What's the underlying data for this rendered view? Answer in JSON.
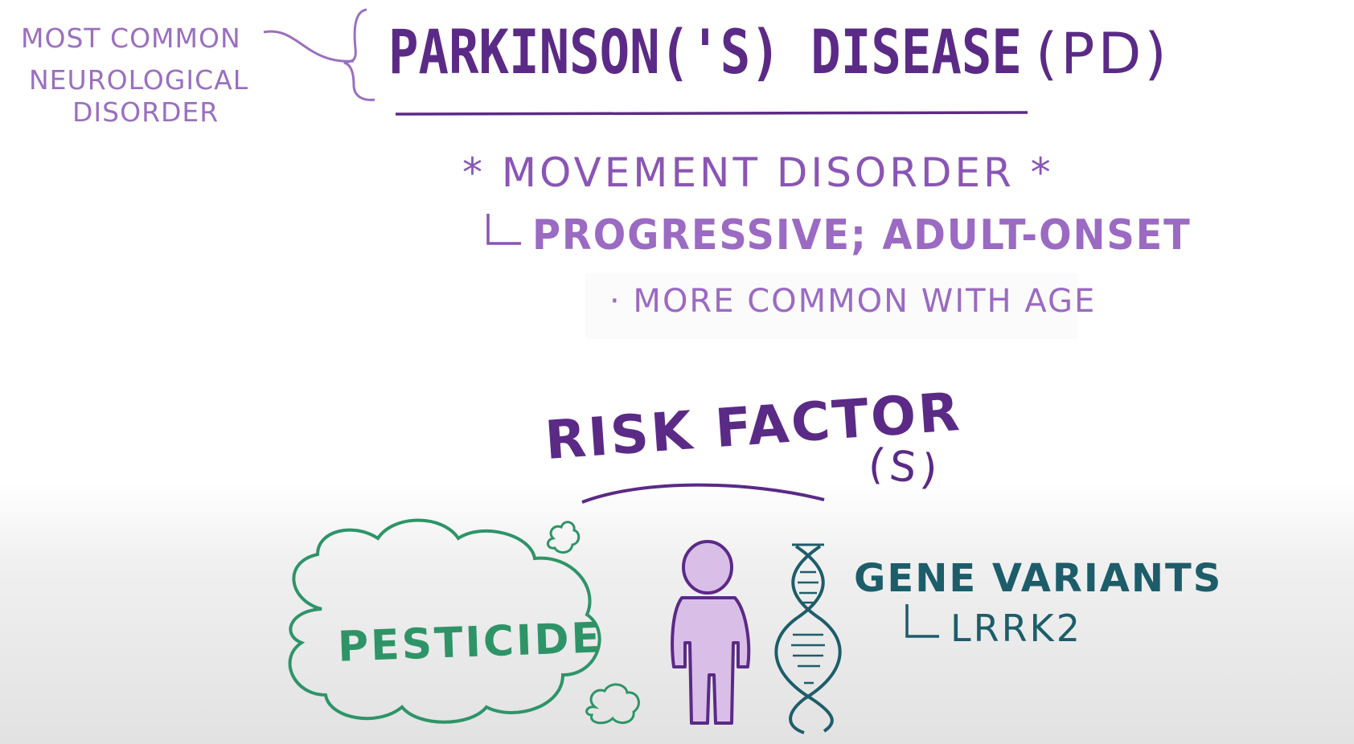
{
  "side_note": {
    "line1": "MOST COMMON",
    "line2": "NEUROLOGICAL",
    "line3": "DISORDER"
  },
  "header": {
    "title": "Parkinson('s) Disease",
    "abbrev": "(PD)"
  },
  "notes": {
    "movement": "* Movement Disorder *",
    "progressive": "Progressive; Adult-Onset",
    "age": "· More Common with Age"
  },
  "risk": {
    "heading": "Risk Factor",
    "plural": "(s)",
    "environmental": "Pesticide",
    "genetic": "Gene Variants",
    "gene_example": "LRRK2"
  },
  "colors": {
    "dark_purple": "#5b2a86",
    "purple": "#8a55b4",
    "light_purple": "#9b6ac3",
    "figure_fill": "#d9bfe8",
    "green": "#2e9468",
    "teal": "#1d5d6a"
  },
  "icons": [
    "cloud-icon",
    "person-icon",
    "dna-helix-icon"
  ]
}
